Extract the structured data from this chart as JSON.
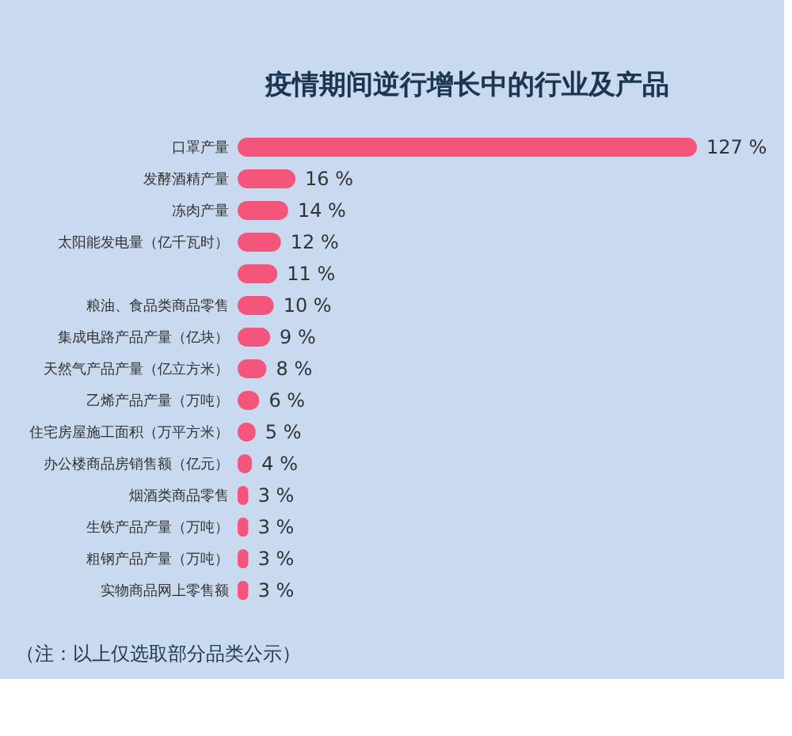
{
  "chart_data": {
    "type": "bar",
    "orientation": "horizontal",
    "title": "疫情期间逆行增长中的行业及产品",
    "categories": [
      "口罩产量",
      "发酵酒精产量",
      "冻肉产量",
      "太阳能发电量（亿千瓦时）",
      null,
      "粮油、食品类商品零售",
      "集成电路产品产量（亿块）",
      "天然气产品产量（亿立方米）",
      "乙烯产品产量（万吨）",
      "住宅房屋施工面积（万平方米）",
      "办公楼商品房销售额（亿元）",
      "烟酒类商品零售",
      "生铁产品产量（万吨）",
      "粗钢产品产量（万吨）",
      "实物商品网上零售额"
    ],
    "values": [
      127,
      16,
      14,
      12,
      11,
      10,
      9,
      8,
      6,
      5,
      4,
      3,
      3,
      3,
      3
    ],
    "value_labels": [
      "127 %",
      "16 %",
      "14 %",
      "12 %",
      "11 %",
      "10 %",
      "9 %",
      "8 %",
      "6 %",
      "5 %",
      "4 %",
      "3 %",
      "3 %",
      "3 %",
      "3 %"
    ],
    "color": "#f4557b",
    "annotations": [
      "（注：以上仅选取部分品类公示）"
    ]
  }
}
